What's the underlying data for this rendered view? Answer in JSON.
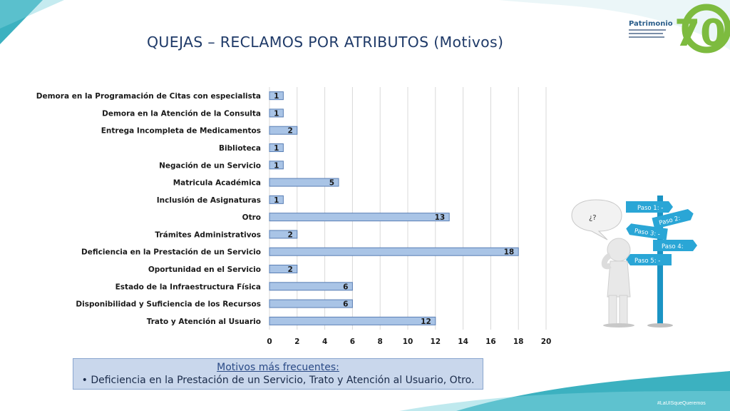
{
  "slide": {
    "title": "QUEJAS – RECLAMOS POR ATRIBUTOS (Motivos)",
    "logo_text": "Patrimonio",
    "logo_number": "70",
    "footer_tag": "#LaUISqueQueremos"
  },
  "callout": {
    "heading": "Motivos más frecuentes:",
    "bullet": "Deficiencia en la Prestación de un Servicio, Trato y Atención al Usuario, Otro."
  },
  "illustration": {
    "speech_text": "¿?",
    "signs": [
      "Paso 1: -",
      "Paso 2:",
      "Paso 3: -",
      "Paso 4:",
      "Paso 5: -"
    ]
  },
  "colors": {
    "bar_fill": "#a9c4e6",
    "bar_stroke": "#5a7fb5",
    "title": "#1f3a68",
    "grid": "#d9d9d9",
    "accent_teal": "#1aa3b5",
    "logo_green": "#7dbb3f"
  },
  "chart_data": {
    "type": "bar",
    "orientation": "horizontal",
    "categories": [
      "Demora en la Programación de Citas con especialista",
      "Demora en la Atención de la Consulta",
      "Entrega Incompleta de Medicamentos",
      "Biblioteca",
      "Negación de un Servicio",
      "Matricula Académica",
      "Inclusión de Asignaturas",
      "Otro",
      "Trámites Administrativos",
      "Deficiencia en la Prestación de un Servicio",
      "Oportunidad en el Servicio",
      "Estado de la Infraestructura Física",
      "Disponibilidad y Suficiencia de los Recursos",
      "Trato y Atención al Usuario"
    ],
    "values": [
      1,
      1,
      2,
      1,
      1,
      5,
      1,
      13,
      2,
      18,
      2,
      6,
      6,
      12
    ],
    "xlim": [
      0,
      20
    ],
    "xticks": [
      0,
      2,
      4,
      6,
      8,
      10,
      12,
      14,
      16,
      18,
      20
    ],
    "grid": "vertical",
    "data_labels": true
  }
}
